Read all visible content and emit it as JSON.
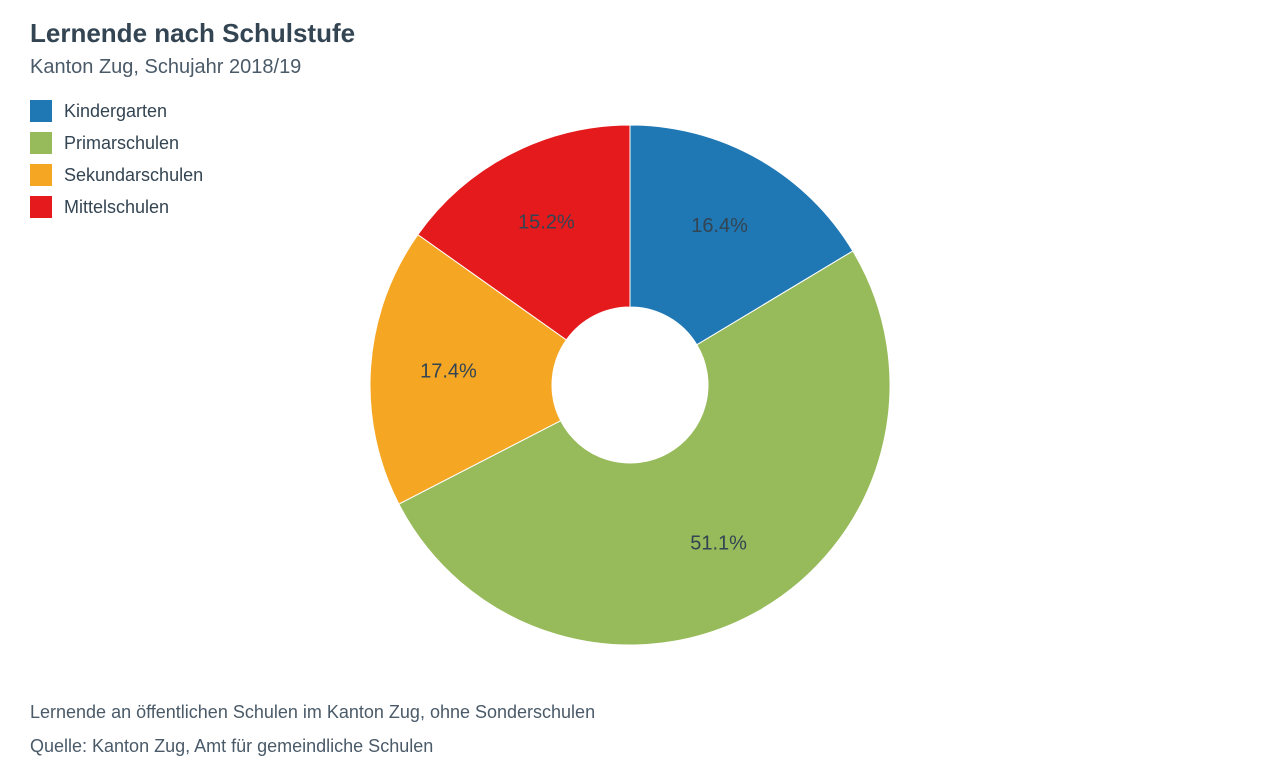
{
  "title": "Lernende nach Schulstufe",
  "subtitle": "Kanton Zug, Schujahr 2018/19",
  "chart": {
    "type": "pie",
    "inner_radius_ratio": 0.3,
    "outer_radius": 260,
    "background_color": "#ffffff",
    "label_color": "#334452",
    "label_fontsize": 20,
    "label_radius_ratio": 0.7,
    "start_angle_deg": 0,
    "slices": [
      {
        "label": "Kindergarten",
        "value": 16.4,
        "color": "#1f77b4",
        "display": "16.4%"
      },
      {
        "label": "Primarschulen",
        "value": 51.1,
        "color": "#97ba5a",
        "display": "51.1%"
      },
      {
        "label": "Sekundarschulen",
        "value": 17.4,
        "color": "#f5a623",
        "display": "17.4%"
      },
      {
        "label": "Mittelschulen",
        "value": 15.2,
        "color": "#e41a1c",
        "display": "15.2%"
      }
    ]
  },
  "legend": {
    "swatch_size": 22,
    "items": [
      {
        "label": "Kindergarten",
        "color": "#1f77b4"
      },
      {
        "label": "Primarschulen",
        "color": "#97ba5a"
      },
      {
        "label": "Sekundarschulen",
        "color": "#f5a623"
      },
      {
        "label": "Mittelschulen",
        "color": "#e41a1c"
      }
    ]
  },
  "footnotes": {
    "line1": "Lernende an öffentlichen Schulen im Kanton Zug, ohne Sonderschulen",
    "line2": "Quelle: Kanton Zug, Amt für gemeindliche Schulen"
  }
}
